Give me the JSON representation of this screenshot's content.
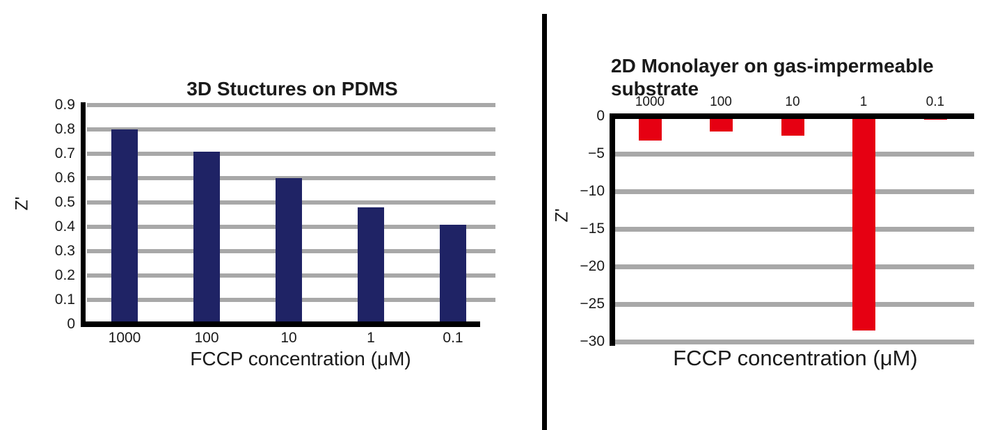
{
  "figure": {
    "background": "#ffffff",
    "divider_color": "#000000",
    "text_color": "#1a1a1a"
  },
  "chart_data": [
    {
      "type": "bar",
      "title": "3D Stuctures on PDMS",
      "xlabel": "FCCP concentration (μM)",
      "ylabel": "Z'",
      "categories": [
        "1000",
        "100",
        "10",
        "1",
        "0.1"
      ],
      "values": [
        0.8,
        0.71,
        0.6,
        0.48,
        0.41
      ],
      "ylim": [
        0,
        0.9
      ],
      "ytick_labels": [
        "0",
        "0.1",
        "0.2",
        "0.3",
        "0.4",
        "0.5",
        "0.6",
        "0.7",
        "0.8",
        "0.9"
      ],
      "ytick_values": [
        0,
        0.1,
        0.2,
        0.3,
        0.4,
        0.5,
        0.6,
        0.7,
        0.8,
        0.9
      ],
      "bar_color": "#1f2365",
      "gridline_color": "#a8a8a8",
      "axis_color": "#000000",
      "grid": true,
      "legend": "none"
    },
    {
      "type": "bar",
      "title": "2D Monolayer on gas-impermeable substrate",
      "xlabel": "FCCP concentration (μM)",
      "ylabel": "Z'",
      "categories": [
        "1000",
        "100",
        "10",
        "1",
        "0.1"
      ],
      "values": [
        -3.2,
        -2.0,
        -2.6,
        -28.5,
        -0.5
      ],
      "ylim": [
        -30,
        0
      ],
      "ytick_labels": [
        "0",
        "−5",
        "−10",
        "−15",
        "−20",
        "−25",
        "−30"
      ],
      "ytick_values": [
        0,
        -5,
        -10,
        -15,
        -20,
        -25,
        -30
      ],
      "bar_color": "#e60012",
      "gridline_color": "#a8a8a8",
      "axis_color": "#000000",
      "grid": true,
      "legend": "none"
    }
  ]
}
